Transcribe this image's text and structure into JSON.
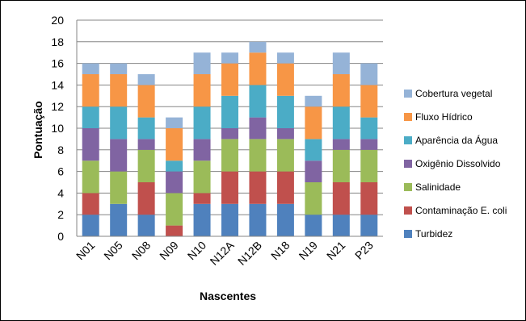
{
  "chart_data": {
    "type": "bar",
    "stacked": true,
    "title": "",
    "xlabel": "Nascentes",
    "ylabel": "Pontuação",
    "ylim": [
      0,
      20
    ],
    "yticks": [
      0,
      2,
      4,
      6,
      8,
      10,
      12,
      14,
      16,
      18,
      20
    ],
    "grid": true,
    "legend_position": "right",
    "categories": [
      "N01",
      "N05",
      "N08",
      "N09",
      "N10",
      "N12A",
      "N12B",
      "N18",
      "N19",
      "N21",
      "P23"
    ],
    "series": [
      {
        "name": "Turbidez",
        "color": "#4F81BD",
        "values": [
          2,
          3,
          2,
          0,
          3,
          3,
          3,
          3,
          2,
          2,
          2
        ]
      },
      {
        "name": "Contaminação E. coli",
        "color": "#C0504D",
        "values": [
          2,
          0,
          3,
          1,
          1,
          3,
          3,
          3,
          0,
          3,
          3
        ]
      },
      {
        "name": "Salinidade",
        "color": "#9BBB59",
        "values": [
          3,
          3,
          3,
          3,
          3,
          3,
          3,
          3,
          3,
          3,
          3
        ]
      },
      {
        "name": "Oxigênio Dissolvido",
        "color": "#8064A2",
        "values": [
          3,
          3,
          1,
          2,
          2,
          1,
          2,
          1,
          2,
          1,
          1
        ]
      },
      {
        "name": "Aparência da Água",
        "color": "#4BACC6",
        "values": [
          2,
          3,
          2,
          1,
          3,
          3,
          3,
          3,
          2,
          3,
          2
        ]
      },
      {
        "name": "Fluxo Hídrico",
        "color": "#F79646",
        "values": [
          3,
          3,
          3,
          3,
          3,
          3,
          3,
          3,
          3,
          3,
          3
        ]
      },
      {
        "name": "Cobertura vegetal",
        "color": "#95B3D7",
        "values": [
          1,
          1,
          1,
          1,
          2,
          1,
          1,
          1,
          1,
          2,
          2
        ]
      }
    ]
  }
}
